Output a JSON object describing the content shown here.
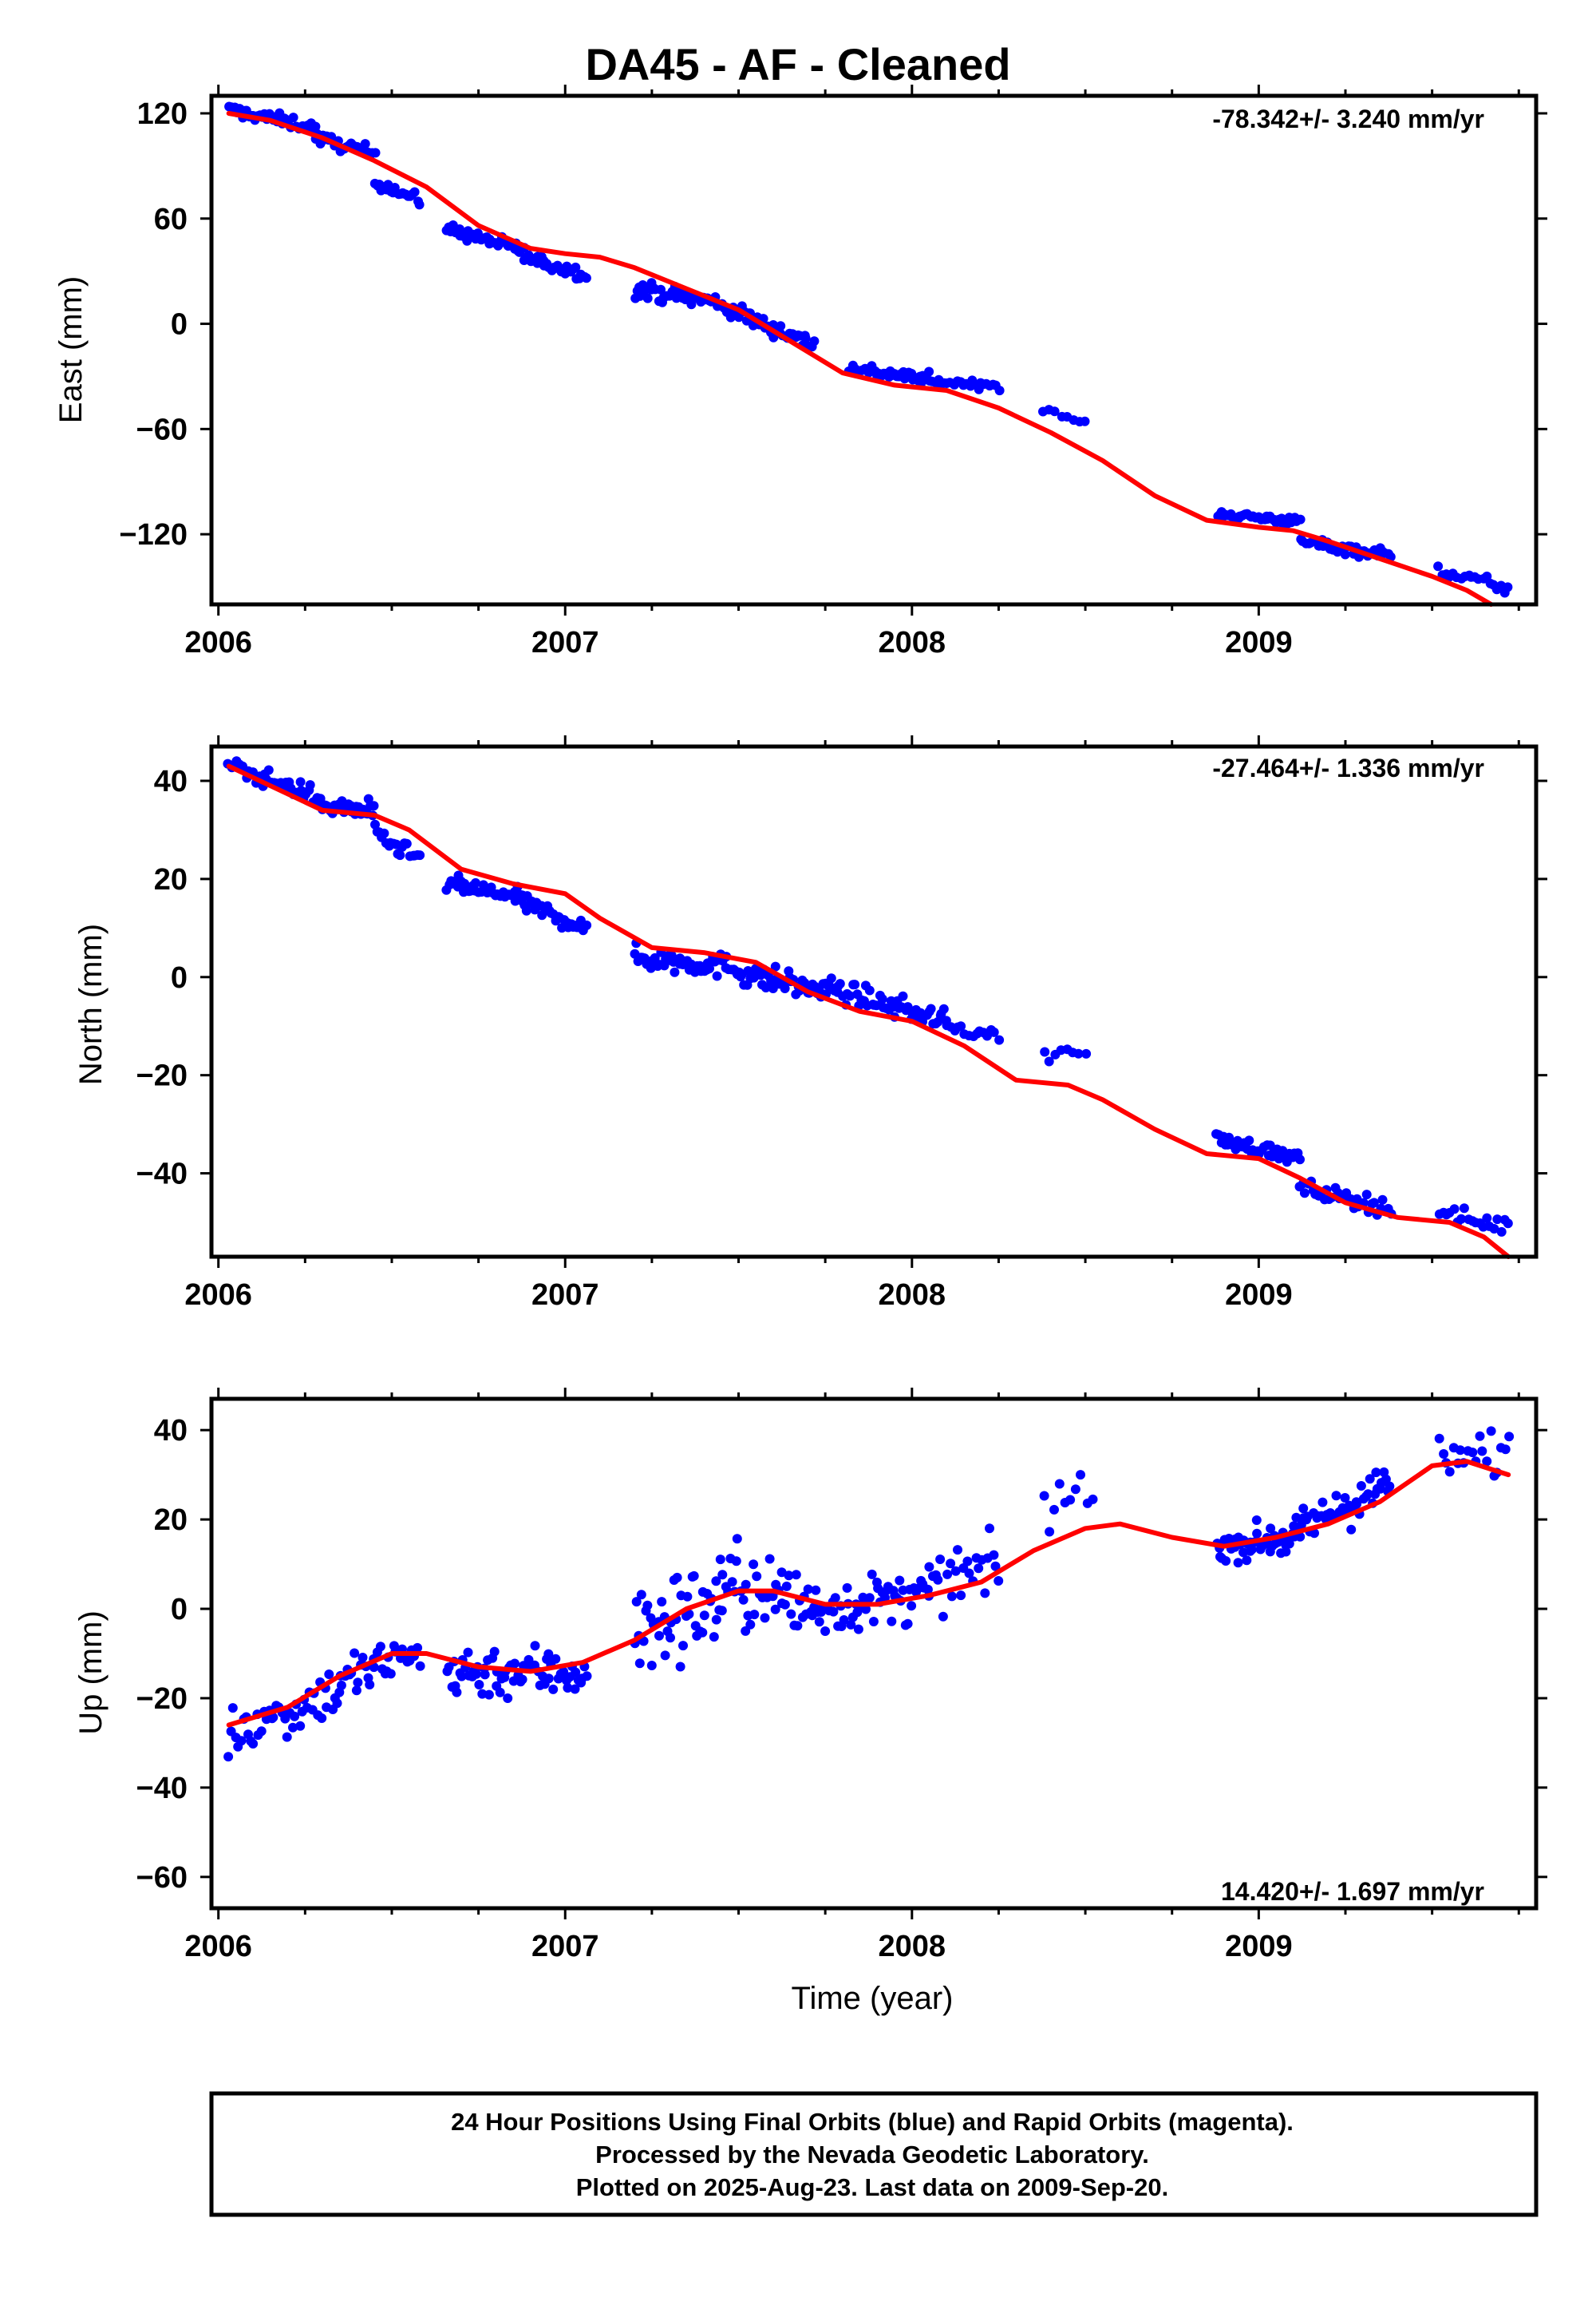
{
  "title": "DA45  - AF - Cleaned",
  "xlabel": "Time (year)",
  "footer": {
    "line1": "24 Hour Positions Using Final Orbits (blue) and Rapid Orbits (magenta).",
    "line2": "Processed by the Nevada Geodetic Laboratory.",
    "line3": "Plotted on 2025-Aug-23. Last data on 2009-Sep-20."
  },
  "colors": {
    "points": "#0000ff",
    "fit": "#ff0000",
    "frame": "#000000"
  },
  "chart_data": [
    {
      "type": "scatter",
      "ylabel": "East (mm)",
      "rate_label": "-78.342+/- 3.240 mm/yr",
      "xlim": [
        2005.98,
        2009.8
      ],
      "ylim": [
        -160,
        130
      ],
      "xticks": [
        2006,
        2007,
        2008,
        2009
      ],
      "yticks": [
        120,
        60,
        0,
        -60,
        -120
      ],
      "ytick_labels": [
        "120",
        "60",
        "0",
        "−60",
        "−120"
      ],
      "fit_x": [
        2006.03,
        2006.15,
        2006.3,
        2006.45,
        2006.6,
        2006.75,
        2006.9,
        2007.0,
        2007.1,
        2007.2,
        2007.35,
        2007.5,
        2007.65,
        2007.8,
        2007.95,
        2008.1,
        2008.25,
        2008.4,
        2008.55,
        2008.7,
        2008.85,
        2009.0,
        2009.1,
        2009.2,
        2009.35,
        2009.5,
        2009.6,
        2009.67
      ],
      "fit_y": [
        120,
        116,
        106,
        93,
        78,
        56,
        43,
        40,
        38,
        32,
        20,
        8,
        -10,
        -28,
        -35,
        -38,
        -48,
        -62,
        -78,
        -98,
        -112,
        -116,
        -118,
        -124,
        -134,
        -144,
        -152,
        -160
      ],
      "segments": [
        {
          "x0": 2006.03,
          "x1": 2006.28,
          "y0": 122,
          "y1": 112,
          "n": 40,
          "noise": 3
        },
        {
          "x0": 2006.28,
          "x1": 2006.45,
          "y0": 106,
          "y1": 97,
          "n": 30,
          "noise": 3
        },
        {
          "x0": 2006.45,
          "x1": 2006.58,
          "y0": 82,
          "y1": 70,
          "n": 20,
          "noise": 3
        },
        {
          "x0": 2006.66,
          "x1": 2006.88,
          "y0": 54,
          "y1": 42,
          "n": 40,
          "noise": 3
        },
        {
          "x0": 2006.88,
          "x1": 2007.06,
          "y0": 38,
          "y1": 28,
          "n": 30,
          "noise": 3
        },
        {
          "x0": 2007.2,
          "x1": 2007.45,
          "y0": 20,
          "y1": 12,
          "n": 45,
          "noise": 4
        },
        {
          "x0": 2007.45,
          "x1": 2007.72,
          "y0": 10,
          "y1": -12,
          "n": 45,
          "noise": 4
        },
        {
          "x0": 2007.82,
          "x1": 2008.05,
          "y0": -25,
          "y1": -32,
          "n": 40,
          "noise": 3
        },
        {
          "x0": 2008.05,
          "x1": 2008.25,
          "y0": -33,
          "y1": -35,
          "n": 25,
          "noise": 2
        },
        {
          "x0": 2008.38,
          "x1": 2008.5,
          "y0": -50,
          "y1": -57,
          "n": 8,
          "noise": 2
        },
        {
          "x0": 2008.88,
          "x1": 2009.12,
          "y0": -108,
          "y1": -113,
          "n": 40,
          "noise": 2
        },
        {
          "x0": 2009.12,
          "x1": 2009.38,
          "y0": -124,
          "y1": -132,
          "n": 35,
          "noise": 3
        },
        {
          "x0": 2009.52,
          "x1": 2009.72,
          "y0": -140,
          "y1": -151,
          "n": 20,
          "noise": 3
        }
      ]
    },
    {
      "type": "scatter",
      "ylabel": "North (mm)",
      "rate_label": "-27.464+/- 1.336 mm/yr",
      "xlim": [
        2005.98,
        2009.8
      ],
      "ylim": [
        -57,
        47
      ],
      "xticks": [
        2006,
        2007,
        2008,
        2009
      ],
      "yticks": [
        40,
        20,
        0,
        -20,
        -40
      ],
      "ytick_labels": [
        "40",
        "20",
        "0",
        "−20",
        "−40"
      ],
      "fit_x": [
        2006.03,
        2006.15,
        2006.3,
        2006.45,
        2006.55,
        2006.7,
        2006.85,
        2007.0,
        2007.1,
        2007.25,
        2007.4,
        2007.55,
        2007.7,
        2007.85,
        2008.0,
        2008.15,
        2008.3,
        2008.45,
        2008.55,
        2008.7,
        2008.85,
        2009.0,
        2009.12,
        2009.25,
        2009.4,
        2009.55,
        2009.65,
        2009.72
      ],
      "fit_y": [
        43,
        39,
        34,
        33,
        30,
        22,
        19,
        17,
        12,
        6,
        5,
        3,
        -3,
        -7,
        -9,
        -14,
        -21,
        -22,
        -25,
        -31,
        -36,
        -37,
        -41,
        -46,
        -49,
        -50,
        -53,
        -57
      ],
      "segments": [
        {
          "x0": 2006.03,
          "x1": 2006.28,
          "y0": 43,
          "y1": 37,
          "n": 40,
          "noise": 1.5
        },
        {
          "x0": 2006.28,
          "x1": 2006.45,
          "y0": 35,
          "y1": 34,
          "n": 30,
          "noise": 1.8
        },
        {
          "x0": 2006.45,
          "x1": 2006.58,
          "y0": 29,
          "y1": 24,
          "n": 20,
          "noise": 1.5
        },
        {
          "x0": 2006.66,
          "x1": 2006.88,
          "y0": 19,
          "y1": 16,
          "n": 40,
          "noise": 1.5
        },
        {
          "x0": 2006.88,
          "x1": 2007.06,
          "y0": 15,
          "y1": 10,
          "n": 30,
          "noise": 1.5
        },
        {
          "x0": 2007.2,
          "x1": 2007.5,
          "y0": 4,
          "y1": 2,
          "n": 55,
          "noise": 2
        },
        {
          "x0": 2007.5,
          "x1": 2007.75,
          "y0": 1,
          "y1": -3,
          "n": 45,
          "noise": 2.2
        },
        {
          "x0": 2007.75,
          "x1": 2008.1,
          "y0": -2,
          "y1": -9,
          "n": 55,
          "noise": 1.8
        },
        {
          "x0": 2008.1,
          "x1": 2008.25,
          "y0": -10,
          "y1": -12,
          "n": 15,
          "noise": 1.2
        },
        {
          "x0": 2008.38,
          "x1": 2008.5,
          "y0": -16,
          "y1": -15,
          "n": 8,
          "noise": 1.2
        },
        {
          "x0": 2008.88,
          "x1": 2009.12,
          "y0": -33,
          "y1": -37,
          "n": 40,
          "noise": 1.2
        },
        {
          "x0": 2009.12,
          "x1": 2009.38,
          "y0": -43,
          "y1": -47,
          "n": 35,
          "noise": 1.5
        },
        {
          "x0": 2009.52,
          "x1": 2009.72,
          "y0": -48,
          "y1": -51,
          "n": 20,
          "noise": 1.5
        }
      ]
    },
    {
      "type": "scatter",
      "ylabel": "Up (mm)",
      "rate_label": "14.420+/- 1.697 mm/yr",
      "xlim": [
        2005.98,
        2009.8
      ],
      "ylim": [
        -67,
        47
      ],
      "xticks": [
        2006,
        2007,
        2008,
        2009
      ],
      "yticks": [
        40,
        20,
        0,
        -20,
        -40,
        -60
      ],
      "ytick_labels": [
        "40",
        "20",
        "0",
        "−20",
        "−40",
        "−60"
      ],
      "fit_x": [
        2006.03,
        2006.2,
        2006.35,
        2006.5,
        2006.6,
        2006.75,
        2006.9,
        2007.05,
        2007.2,
        2007.35,
        2007.5,
        2007.6,
        2007.75,
        2007.9,
        2008.05,
        2008.2,
        2008.35,
        2008.5,
        2008.6,
        2008.75,
        2008.9,
        2009.05,
        2009.2,
        2009.35,
        2009.5,
        2009.6,
        2009.72
      ],
      "fit_y": [
        -26,
        -22,
        -15,
        -10,
        -10,
        -13,
        -14,
        -12,
        -7,
        0,
        4,
        4,
        1,
        1,
        3,
        6,
        13,
        18,
        19,
        16,
        14,
        16,
        19,
        24,
        32,
        33,
        30
      ],
      "segments": [
        {
          "x0": 2006.03,
          "x1": 2006.35,
          "y0": -28,
          "y1": -18,
          "n": 45,
          "noise": 5
        },
        {
          "x0": 2006.35,
          "x1": 2006.58,
          "y0": -16,
          "y1": -10,
          "n": 35,
          "noise": 5
        },
        {
          "x0": 2006.66,
          "x1": 2007.06,
          "y0": -14,
          "y1": -14,
          "n": 70,
          "noise": 5
        },
        {
          "x0": 2007.2,
          "x1": 2007.45,
          "y0": -6,
          "y1": 2,
          "n": 45,
          "noise": 9
        },
        {
          "x0": 2007.45,
          "x1": 2007.72,
          "y0": 6,
          "y1": 0,
          "n": 45,
          "noise": 8
        },
        {
          "x0": 2007.72,
          "x1": 2008.05,
          "y0": 0,
          "y1": 3,
          "n": 55,
          "noise": 5
        },
        {
          "x0": 2008.05,
          "x1": 2008.25,
          "y0": 5,
          "y1": 10,
          "n": 25,
          "noise": 5
        },
        {
          "x0": 2008.38,
          "x1": 2008.52,
          "y0": 22,
          "y1": 26,
          "n": 10,
          "noise": 5
        },
        {
          "x0": 2008.88,
          "x1": 2009.12,
          "y0": 14,
          "y1": 16,
          "n": 50,
          "noise": 3
        },
        {
          "x0": 2009.12,
          "x1": 2009.38,
          "y0": 18,
          "y1": 28,
          "n": 45,
          "noise": 4
        },
        {
          "x0": 2009.52,
          "x1": 2009.72,
          "y0": 32,
          "y1": 36,
          "n": 20,
          "noise": 5
        }
      ]
    }
  ]
}
